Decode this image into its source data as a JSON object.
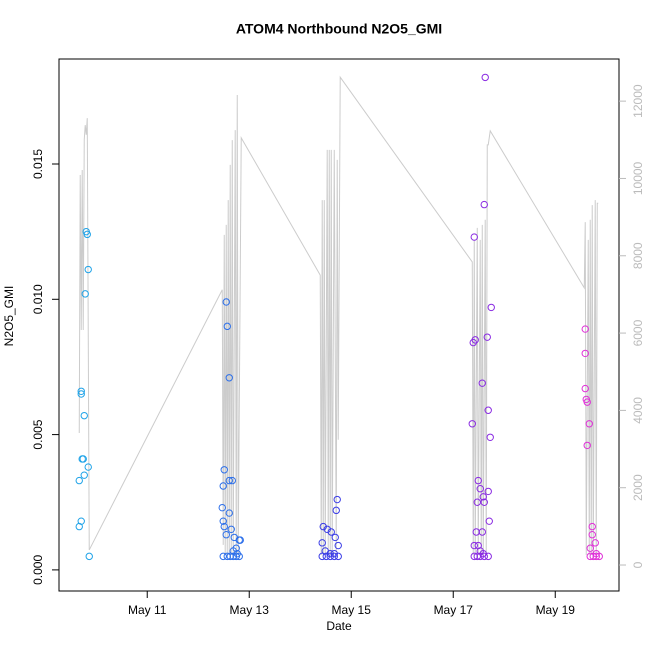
{
  "chart_data": {
    "type": "scatter",
    "title": "ATOM4 Northbound N2O5_GMI",
    "xlabel": "Date",
    "ylabel": "N2O5_GMI",
    "xlim": [
      9.27,
      20.25
    ],
    "xticks": [
      {
        "value": 11,
        "label": "May 11"
      },
      {
        "value": 13,
        "label": "May 13"
      },
      {
        "value": 15,
        "label": "May 15"
      },
      {
        "value": 17,
        "label": "May 17"
      },
      {
        "value": 19,
        "label": "May 19"
      }
    ],
    "ylim": [
      -0.00078,
      0.01888
    ],
    "yticks": [
      {
        "value": 0,
        "label": "0.000"
      },
      {
        "value": 0.005,
        "label": "0.005"
      },
      {
        "value": 0.01,
        "label": "0.010"
      },
      {
        "value": 0.015,
        "label": "0.015"
      }
    ],
    "y2lim": [
      -672,
      13090
    ],
    "y2ticks": [
      0,
      2000,
      4000,
      6000,
      8000,
      10000,
      12000
    ],
    "y2color": "#bbbbbb",
    "series": [
      {
        "color": "#1fa3e8",
        "x": [
          9.667,
          9.706,
          9.667,
          9.706,
          9.706,
          9.745,
          9.725,
          9.765,
          9.765,
          9.804,
          9.824,
          9.784,
          9.843,
          9.843,
          9.863
        ],
        "values": [
          0.0016,
          0.0018,
          0.0033,
          0.0066,
          0.0065,
          0.0041,
          0.0041,
          0.0057,
          0.0035,
          0.0125,
          0.0124,
          0.0102,
          0.0111,
          0.0038,
          0.0005
        ]
      },
      {
        "color": "#2c6fea",
        "x": [
          12.51,
          12.49,
          12.471,
          12.49,
          12.51,
          12.549,
          12.549,
          12.569,
          12.608,
          12.608,
          12.667,
          12.608,
          12.647,
          12.706,
          12.745,
          12.804,
          12.824,
          12.49,
          12.569,
          12.627,
          12.686,
          12.745,
          12.804,
          12.686,
          12.765
        ],
        "values": [
          0.0037,
          0.0031,
          0.0023,
          0.0018,
          0.0016,
          0.0013,
          0.0099,
          0.009,
          0.0071,
          0.0033,
          0.0033,
          0.0021,
          0.0015,
          0.0012,
          0.0008,
          0.0011,
          0.0011,
          0.0005,
          0.0005,
          0.0005,
          0.0005,
          0.0005,
          0.0005,
          0.0007,
          0.0006
        ]
      },
      {
        "color": "#3b3de6",
        "x": [
          14.725,
          14.706,
          14.451,
          14.529,
          14.608,
          14.686,
          14.431,
          14.745,
          14.49,
          14.588,
          14.667,
          14.431,
          14.51,
          14.588,
          14.667,
          14.745
        ],
        "values": [
          0.0026,
          0.0022,
          0.0016,
          0.0015,
          0.0014,
          0.0012,
          0.001,
          0.0009,
          0.0007,
          0.0006,
          0.0006,
          0.0005,
          0.0005,
          0.0005,
          0.0005,
          0.0005
        ]
      },
      {
        "color": "#8a2be2",
        "x": [
          17.627,
          17.608,
          17.412,
          17.745,
          17.667,
          17.431,
          17.392,
          17.569,
          17.686,
          17.373,
          17.725,
          17.49,
          17.529,
          17.686,
          17.588,
          17.471,
          17.608,
          17.706,
          17.451,
          17.569,
          17.412,
          17.49,
          17.529,
          17.588,
          17.412,
          17.471,
          17.529,
          17.608,
          17.686
        ],
        "values": [
          0.0182,
          0.0135,
          0.0123,
          0.0097,
          0.0086,
          0.0085,
          0.0084,
          0.0069,
          0.0059,
          0.0054,
          0.0049,
          0.0033,
          0.003,
          0.0029,
          0.0027,
          0.0025,
          0.0025,
          0.0018,
          0.0014,
          0.0014,
          0.0009,
          0.0009,
          0.0007,
          0.0006,
          0.0005,
          0.0005,
          0.0005,
          0.0005,
          0.0005
        ]
      },
      {
        "color": "#e030d8",
        "x": [
          19.588,
          19.588,
          19.588,
          19.627,
          19.608,
          19.667,
          19.627,
          19.725,
          19.725,
          19.784,
          19.686,
          19.804,
          19.686,
          19.745,
          19.804,
          19.863
        ],
        "values": [
          0.0089,
          0.008,
          0.0067,
          0.0062,
          0.0063,
          0.0054,
          0.0046,
          0.0016,
          0.0013,
          0.001,
          0.0008,
          0.0006,
          0.0005,
          0.0005,
          0.0005,
          0.0005
        ]
      },
      {
        "type": "line",
        "axis": "y2",
        "color": "#cccccc",
        "x": [
          9.667,
          9.686,
          9.706,
          9.725,
          9.745,
          9.765,
          9.784,
          9.804,
          9.824,
          9.863,
          12.471,
          12.49,
          12.51,
          12.529,
          12.549,
          12.569,
          12.588,
          12.608,
          12.627,
          12.647,
          12.667,
          12.686,
          12.725,
          12.745,
          12.765,
          12.784,
          12.843,
          14.392,
          14.412,
          14.431,
          14.451,
          14.471,
          14.49,
          14.529,
          14.549,
          14.569,
          14.588,
          14.608,
          14.627,
          14.667,
          14.706,
          14.725,
          14.745,
          14.784,
          17.373,
          17.392,
          17.412,
          17.431,
          17.471,
          17.49,
          17.529,
          17.549,
          17.569,
          17.588,
          17.627,
          17.647,
          17.667,
          17.686,
          17.725,
          19.569,
          19.588,
          19.608,
          19.647,
          19.667,
          19.686,
          19.706,
          19.725,
          19.745,
          19.784,
          19.804,
          19.824,
          19.843
        ],
        "values": [
          3415,
          10090,
          6080,
          10220,
          6080,
          11000,
          11380,
          11130,
          11560,
          390,
          7120,
          520,
          8540,
          260,
          8800,
          260,
          9440,
          260,
          10350,
          260,
          10990,
          260,
          11250,
          260,
          12160,
          260,
          11050,
          7500,
          260,
          9440,
          260,
          9440,
          260,
          10740,
          260,
          10740,
          260,
          10740,
          260,
          10740,
          340,
          10480,
          3240,
          12620,
          7840,
          260,
          8410,
          260,
          8720,
          260,
          8410,
          260,
          8800,
          260,
          8930,
          260,
          10870,
          10870,
          11230,
          7170,
          8870,
          260,
          8410,
          260,
          8930,
          260,
          9310,
          260,
          9440,
          260,
          9360,
          9360
        ]
      }
    ]
  }
}
